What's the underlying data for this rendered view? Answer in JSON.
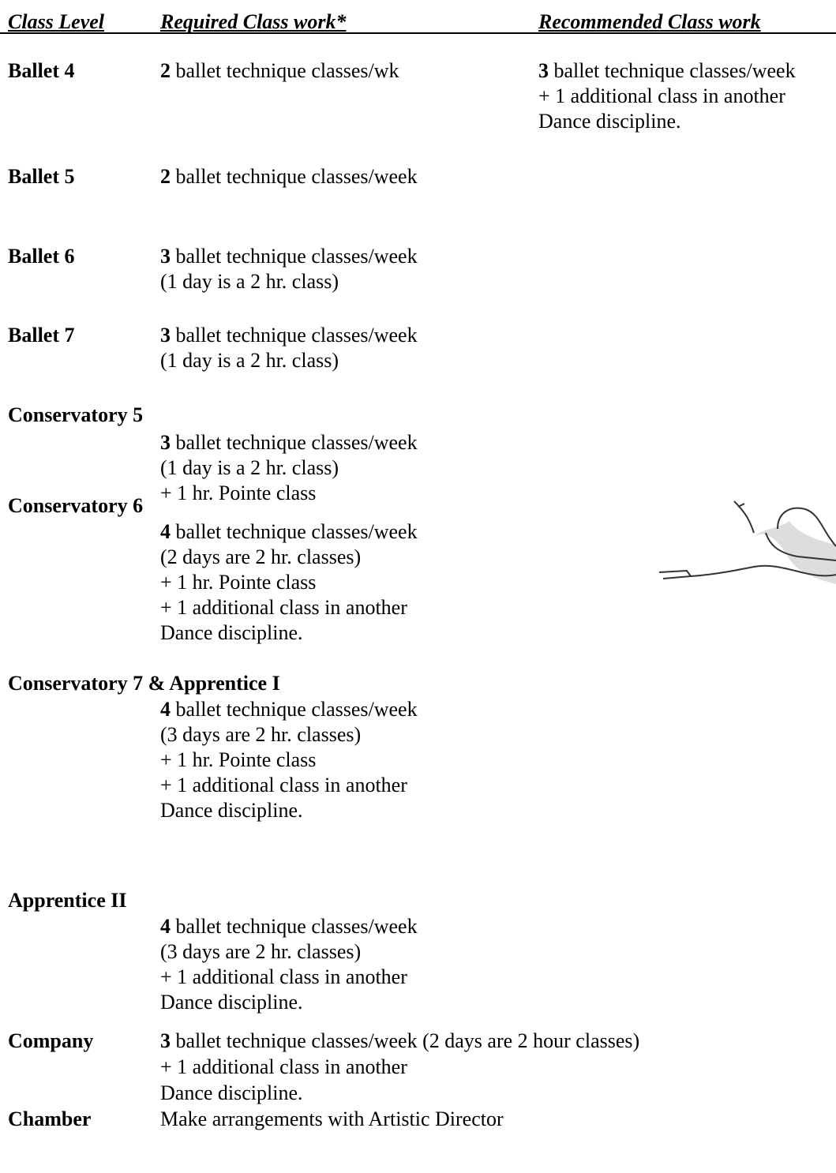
{
  "header": {
    "columns": [
      "Class Level",
      "Required Class work*",
      "Recommended Class work"
    ]
  },
  "rows": [
    {
      "level": "Ballet 4",
      "required": [
        {
          "bold": "2",
          "text": "ballet technique classes/wk"
        }
      ],
      "recommended": [
        {
          "bold": "3",
          "text": "ballet technique classes/week"
        },
        {
          "text": "+ 1 additional class in another"
        },
        {
          "text": "Dance discipline."
        }
      ]
    },
    {
      "level": "Ballet 5",
      "required": [
        {
          "bold": "2",
          "text": "ballet technique classes/week"
        }
      ]
    },
    {
      "level": "Ballet 6",
      "required": [
        {
          "bold": "3",
          "text": "ballet technique classes/week"
        },
        {
          "text": "(1 day is a 2 hr. class)"
        }
      ]
    },
    {
      "level": "Ballet 7",
      "required": [
        {
          "bold": "3",
          "text": "ballet technique classes/week"
        },
        {
          "text": "(1 day is a 2 hr. class)"
        }
      ]
    },
    {
      "level": "Conservatory 5",
      "required": [
        {
          "bold": "3",
          "text": "ballet technique classes/week"
        },
        {
          "text": "(1 day is a 2 hr. class)"
        },
        {
          "text": "+ 1 hr. Pointe class"
        }
      ]
    },
    {
      "level": "Conservatory 6",
      "required": [
        {
          "bold": "4",
          "text": "ballet technique classes/week"
        },
        {
          "text": "(2 days are 2 hr. classes)"
        },
        {
          "text": "+ 1 hr. Pointe class"
        },
        {
          "text": "+ 1 additional class in another"
        },
        {
          "text": "Dance discipline."
        }
      ]
    },
    {
      "level": "Conservatory 7 & Apprentice I",
      "required": [
        {
          "bold": "4",
          "text": "ballet technique classes/week"
        },
        {
          "text": "(3 days are 2 hr. classes)"
        },
        {
          "text": "+ 1 hr. Pointe class"
        },
        {
          "text": "+ 1 additional class in another"
        },
        {
          "text": "Dance discipline."
        }
      ]
    },
    {
      "level": "Apprentice II",
      "required": [
        {
          "bold": "4",
          "text": "ballet technique classes/week"
        },
        {
          "text": "(3 days are 2 hr. classes)"
        },
        {
          "text": "+ 1 additional class in another"
        },
        {
          "text": "Dance discipline."
        }
      ]
    },
    {
      "level": "Company",
      "required": [
        {
          "bold": "3",
          "text": "ballet technique classes/week (2 days are 2 hour classes)"
        },
        {
          "text": "+ 1 additional class in another"
        },
        {
          "text": "Dance discipline."
        }
      ]
    },
    {
      "level": "Chamber",
      "required": [
        {
          "text": "Make arrangements with Artistic Director"
        }
      ]
    }
  ]
}
